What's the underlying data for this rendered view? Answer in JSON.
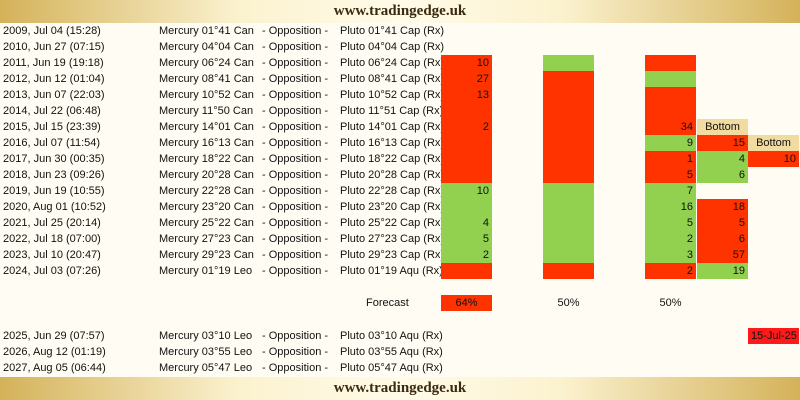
{
  "header": {
    "title": "www.tradingedge.uk"
  },
  "footer": {
    "title": "www.tradingedge.uk"
  },
  "rows": [
    {
      "date": "2009, Jul 04 (15:28)",
      "mercury": "Mercury 01°41 Can",
      "aspect": "- Opposition -",
      "pluto": "Pluto 01°41 Cap (Rx)",
      "cells": [
        null,
        null,
        null,
        null,
        null
      ]
    },
    {
      "date": "2010, Jun 27 (07:15)",
      "mercury": "Mercury 04°04 Can",
      "aspect": "- Opposition -",
      "pluto": "Pluto 04°04 Cap (Rx)",
      "cells": [
        null,
        null,
        null,
        null,
        null
      ]
    },
    {
      "date": "2011, Jun 19 (19:18)",
      "mercury": "Mercury 06°24 Can",
      "aspect": "- Opposition -",
      "pluto": "Pluto 06°24 Cap (Rx)",
      "cells": [
        {
          "color": "#ff3300",
          "text": 10
        },
        {
          "color": "#92d050"
        },
        {
          "color": "#ff3300"
        },
        null,
        null
      ]
    },
    {
      "date": "2012, Jun 12 (01:04)",
      "mercury": "Mercury 08°41 Can",
      "aspect": "- Opposition -",
      "pluto": "Pluto 08°41 Cap (Rx)",
      "cells": [
        {
          "color": "#ff3300",
          "text": 27
        },
        {
          "color": "#ff3300"
        },
        {
          "color": "#92d050"
        },
        null,
        null
      ]
    },
    {
      "date": "2013, Jun 07 (22:03)",
      "mercury": "Mercury 10°52 Can",
      "aspect": "- Opposition -",
      "pluto": "Pluto 10°52 Cap (Rx)",
      "cells": [
        {
          "color": "#ff3300",
          "text": 13
        },
        {
          "color": "#ff3300"
        },
        {
          "color": "#ff3300"
        },
        null,
        null
      ]
    },
    {
      "date": "2014, Jul 22 (06:48)",
      "mercury": "Mercury 11°50 Can",
      "aspect": "- Opposition -",
      "pluto": "Pluto 11°51 Cap (Rx)",
      "cells": [
        {
          "color": "#ff3300"
        },
        {
          "color": "#ff3300"
        },
        {
          "color": "#ff3300"
        },
        null,
        null
      ]
    },
    {
      "date": "2015, Jul 15 (23:39)",
      "mercury": "Mercury 14°01 Can",
      "aspect": "- Opposition -",
      "pluto": "Pluto 14°01 Cap (Rx)",
      "cells": [
        {
          "color": "#ff3300",
          "text": 2
        },
        {
          "color": "#ff3300"
        },
        {
          "color": "#ff3300",
          "text": 34
        },
        {
          "color": "#f2dba0",
          "text": "Bottom"
        },
        null
      ]
    },
    {
      "date": "2016, Jul 07 (11:54)",
      "mercury": "Mercury 16°13 Can",
      "aspect": "- Opposition -",
      "pluto": "Pluto 16°13 Cap (Rx)",
      "cells": [
        {
          "color": "#ff3300"
        },
        {
          "color": "#ff3300"
        },
        {
          "color": "#92d050",
          "text": 9
        },
        {
          "color": "#ff3300",
          "text": 15
        },
        {
          "color": "#f2dba0",
          "text": "Bottom"
        }
      ]
    },
    {
      "date": "2017, Jun 30 (00:35)",
      "mercury": "Mercury 18°22 Can",
      "aspect": "- Opposition -",
      "pluto": "Pluto 18°22 Cap (Rx)",
      "cells": [
        {
          "color": "#ff3300"
        },
        {
          "color": "#ff3300"
        },
        {
          "color": "#ff3300",
          "text": 1
        },
        {
          "color": "#92d050",
          "text": 4
        },
        {
          "color": "#ff3300",
          "text": 10
        }
      ]
    },
    {
      "date": "2018, Jun 23 (09:26)",
      "mercury": "Mercury 20°28 Can",
      "aspect": "- Opposition -",
      "pluto": "Pluto 20°28 Cap (Rx)",
      "cells": [
        {
          "color": "#ff3300"
        },
        {
          "color": "#ff3300"
        },
        {
          "color": "#ff3300",
          "text": 5
        },
        {
          "color": "#92d050",
          "text": 6
        },
        null
      ]
    },
    {
      "date": "2019, Jun 19 (10:55)",
      "mercury": "Mercury 22°28 Can",
      "aspect": "- Opposition -",
      "pluto": "Pluto 22°28 Cap (Rx)",
      "cells": [
        {
          "color": "#92d050",
          "text": 10
        },
        {
          "color": "#92d050"
        },
        {
          "color": "#92d050",
          "text": 7
        },
        null,
        null
      ]
    },
    {
      "date": "2020, Aug 01 (10:52)",
      "mercury": "Mercury 23°20 Can",
      "aspect": "- Opposition -",
      "pluto": "Pluto 23°20 Cap (Rx)",
      "cells": [
        {
          "color": "#92d050"
        },
        {
          "color": "#92d050"
        },
        {
          "color": "#92d050",
          "text": 16
        },
        {
          "color": "#ff3300",
          "text": 18
        },
        null
      ]
    },
    {
      "date": "2021, Jul 25 (20:14)",
      "mercury": "Mercury 25°22 Can",
      "aspect": "- Opposition -",
      "pluto": "Pluto 25°22 Cap (Rx)",
      "cells": [
        {
          "color": "#92d050",
          "text": 4
        },
        {
          "color": "#92d050"
        },
        {
          "color": "#92d050",
          "text": 5
        },
        {
          "color": "#ff3300",
          "text": 5
        },
        null
      ]
    },
    {
      "date": "2022, Jul 18 (07:00)",
      "mercury": "Mercury 27°23 Can",
      "aspect": "- Opposition -",
      "pluto": "Pluto 27°23 Cap (Rx)",
      "cells": [
        {
          "color": "#92d050",
          "text": 5
        },
        {
          "color": "#92d050"
        },
        {
          "color": "#92d050",
          "text": 2
        },
        {
          "color": "#ff3300",
          "text": 6
        },
        null
      ]
    },
    {
      "date": "2023, Jul 10 (20:47)",
      "mercury": "Mercury 29°23 Can",
      "aspect": "- Opposition -",
      "pluto": "Pluto 29°23 Cap (Rx)",
      "cells": [
        {
          "color": "#92d050",
          "text": 2
        },
        {
          "color": "#92d050"
        },
        {
          "color": "#92d050",
          "text": 3
        },
        {
          "color": "#ff3300",
          "text": 57
        },
        null
      ]
    },
    {
      "date": "2024, Jul 03 (07:26)",
      "mercury": "Mercury 01°19 Leo",
      "aspect": "- Opposition -",
      "pluto": "Pluto 01°19 Aqu (Rx)",
      "cells": [
        {
          "color": "#ff3300"
        },
        {
          "color": "#ff3300"
        },
        {
          "color": "#ff3300",
          "text": 2
        },
        {
          "color": "#92d050",
          "text": 19
        },
        null
      ]
    }
  ],
  "forecast": {
    "label": "Forecast",
    "cells": [
      {
        "color": "#ff3300",
        "text": "64%"
      },
      {
        "text": "50%"
      },
      {
        "text": "50%"
      },
      null,
      null
    ]
  },
  "future_rows": [
    {
      "date": "2025, Jun 29 (07:57)",
      "mercury": "Mercury 03°10 Leo",
      "aspect": "- Opposition -",
      "pluto": "Pluto 03°10 Aqu (Rx)",
      "cells": [
        null,
        null,
        null,
        null,
        {
          "color": "#ff1a1a",
          "text": "15-Jul-25"
        }
      ]
    },
    {
      "date": "2026, Aug 12 (01:19)",
      "mercury": "Mercury 03°55 Leo",
      "aspect": "- Opposition -",
      "pluto": "Pluto 03°55 Aqu (Rx)",
      "cells": [
        null,
        null,
        null,
        null,
        null
      ]
    },
    {
      "date": "2027, Aug 05 (06:44)",
      "mercury": "Mercury 05°47 Leo",
      "aspect": "- Opposition -",
      "pluto": "Pluto 05°47 Aqu (Rx)",
      "cells": [
        null,
        null,
        null,
        null,
        null
      ]
    }
  ]
}
